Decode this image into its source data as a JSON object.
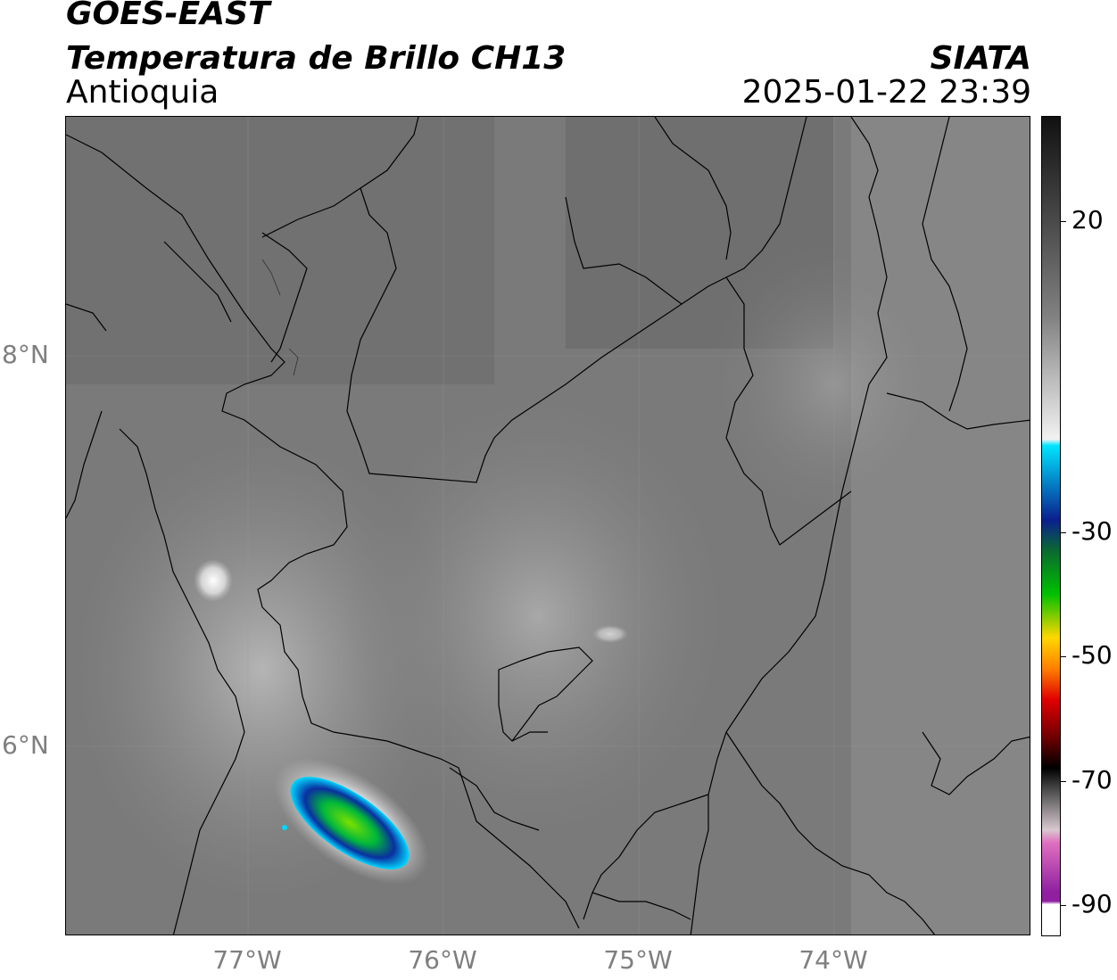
{
  "header": {
    "line1": "GOES-EAST",
    "line2": "Temperatura de Brillo CH13",
    "region": "Antioquia",
    "agency": "SIATA",
    "datetime": "2025-01-22 23:39"
  },
  "map": {
    "lat_labels": [
      "8°N",
      "6°N"
    ],
    "lon_labels": [
      "77°W",
      "76°W",
      "75°W",
      "74°W"
    ]
  },
  "colorbar": {
    "tick_labels": [
      "20",
      "-30",
      "-50",
      "-70",
      "-90"
    ],
    "tick_values": [
      20,
      -30,
      -50,
      -70,
      -90
    ],
    "range": [
      -95,
      37
    ],
    "colors": {
      "warm_dark": "#111111",
      "mid_gray": "#808080",
      "light": "#f2f2f2",
      "cyan": "#00e5ff",
      "blue": "#0a1f8f",
      "green": "#00c000",
      "yellow": "#ffd700",
      "orange": "#ff7f00",
      "red": "#e00000",
      "black": "#000000",
      "pink": "#e070c0",
      "purple": "#9020a0"
    }
  }
}
